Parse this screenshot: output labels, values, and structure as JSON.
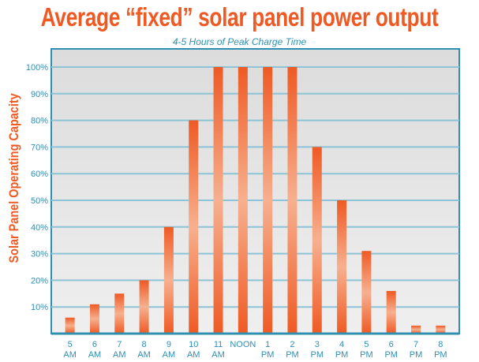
{
  "chart_data": {
    "type": "bar",
    "title": "Average “fixed” solar panel power output",
    "subtitle": "4-5 Hours of Peak Charge Time",
    "xlabel": "",
    "ylabel": "Solar Panel Operating Capacity",
    "ylim": [
      0,
      110
    ],
    "yticks": [
      "10%",
      "20%",
      "30%",
      "40%",
      "50%",
      "60%",
      "70%",
      "80%",
      "90%",
      "100%"
    ],
    "grid": true,
    "categories": [
      [
        "5",
        "AM"
      ],
      [
        "6",
        "AM"
      ],
      [
        "7",
        "AM"
      ],
      [
        "8",
        "AM"
      ],
      [
        "9",
        "AM"
      ],
      [
        "10",
        "AM"
      ],
      [
        "11",
        "AM"
      ],
      [
        "NOON",
        ""
      ],
      [
        "1",
        "PM"
      ],
      [
        "2",
        "PM"
      ],
      [
        "3",
        "PM"
      ],
      [
        "4",
        "PM"
      ],
      [
        "5",
        "PM"
      ],
      [
        "6",
        "PM"
      ],
      [
        "7",
        "PM"
      ],
      [
        "8",
        "PM"
      ]
    ],
    "values": [
      6,
      11,
      15,
      20,
      40,
      80,
      100,
      100,
      100,
      100,
      70,
      50,
      31,
      16,
      3,
      3
    ],
    "colors": {
      "bar": "#ef5a24",
      "bar_light": "#f7b08f",
      "axis": "#2f8fb3",
      "grid": "#8cc3d6",
      "plot_bg": "#e6e6e6"
    }
  }
}
